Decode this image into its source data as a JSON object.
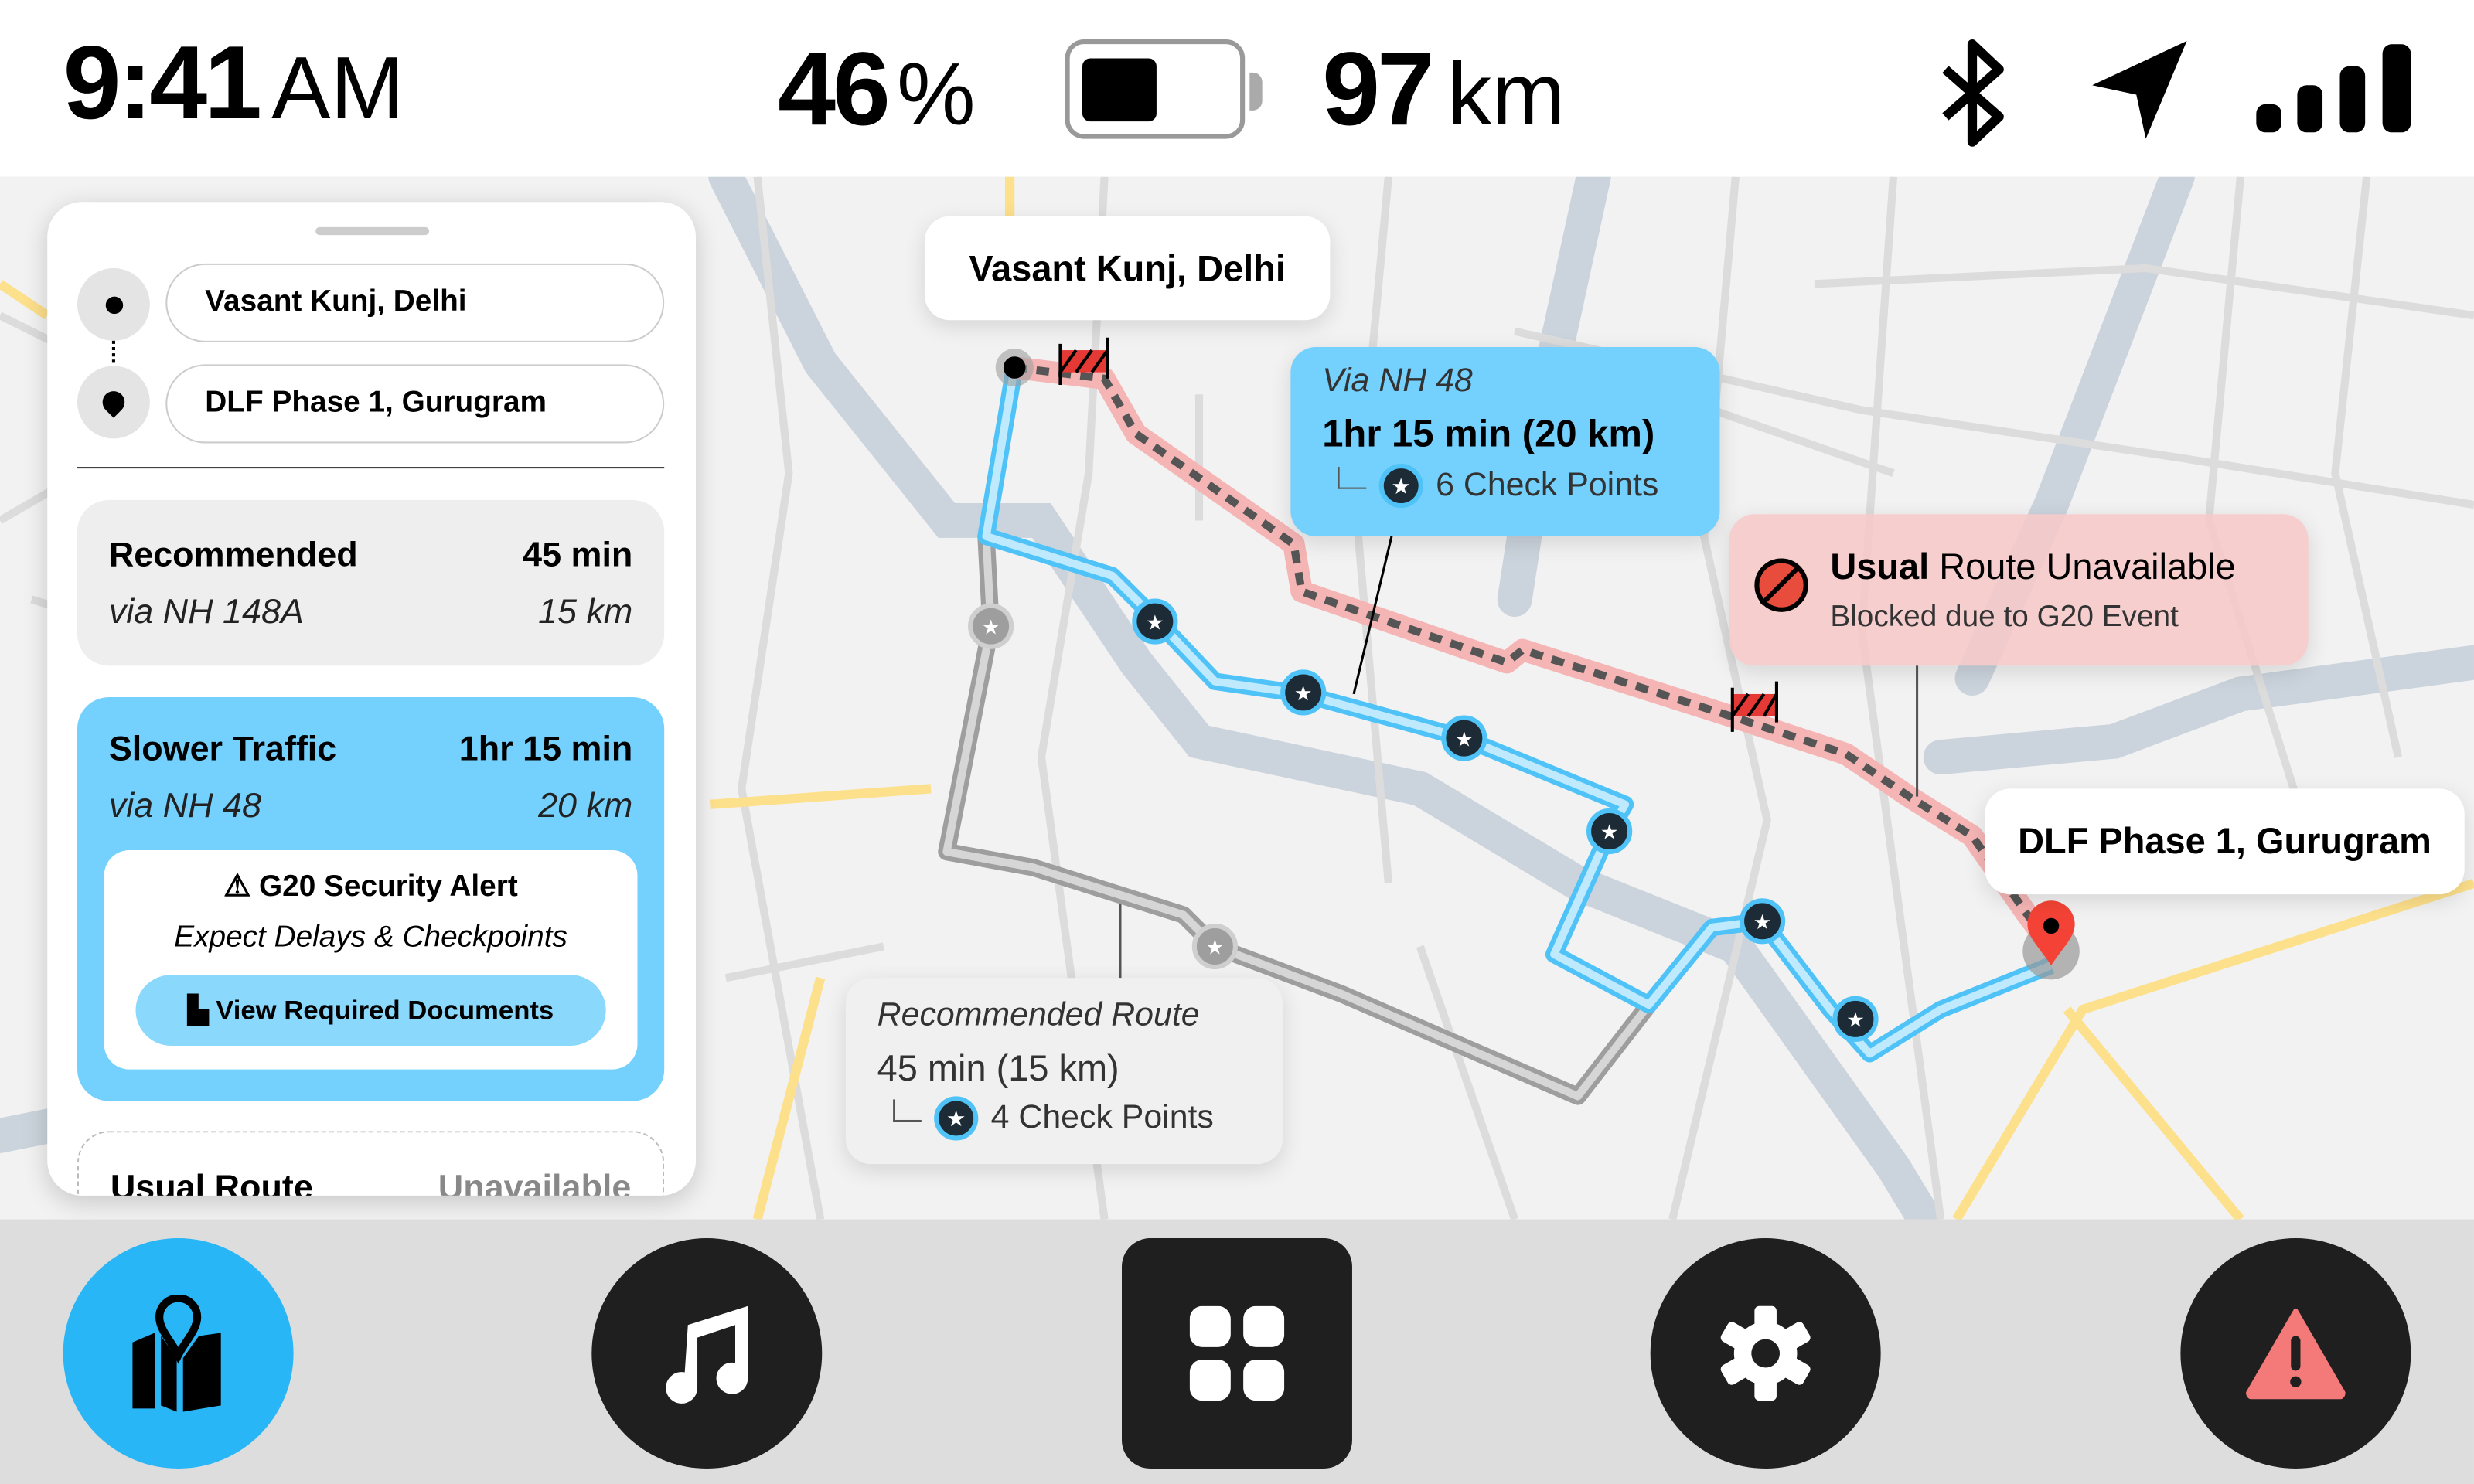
{
  "status": {
    "time": "9:41",
    "ampm": "AM",
    "battery_percent": "46",
    "percent_sign": "%",
    "battery_level": 0.46,
    "range": "97",
    "range_unit": "km",
    "icons": [
      "bluetooth-icon",
      "navigation-arrow-icon",
      "signal-bars-icon"
    ]
  },
  "panel": {
    "origin": "Vasant Kunj, Delhi",
    "destination": "DLF Phase 1, Gurugram",
    "routes": [
      {
        "title": "Recommended",
        "time": "45 min",
        "via": "via NH 148A",
        "distance": "15 km"
      },
      {
        "title": "Slower Traffic",
        "time": "1hr 15 min",
        "via": "via NH 48",
        "distance": "20 km",
        "alert": {
          "title": "G20 Security Alert",
          "subtitle": "Expect Delays & Checkpoints",
          "button": "View Required Documents"
        }
      },
      {
        "title": "Usual Route",
        "time": "Unavailable"
      }
    ]
  },
  "map": {
    "origin_label": "Vasant Kunj, Delhi",
    "destination_label": "DLF Phase 1, Gurugram",
    "nh48": {
      "via": "Via NH 48",
      "summary": "1hr 15 min (20 km)",
      "checkpoints": "6 Check Points"
    },
    "blocked": {
      "title_bold": "Usual",
      "title_rest": " Route Unavailable",
      "subtitle": "Blocked due to G20 Event"
    },
    "recommended": {
      "title": "Recommended Route",
      "summary": "45 min (15 km)",
      "checkpoints": "4 Check Points"
    },
    "colors": {
      "nh48_route": "#4fc3f7",
      "recommended_route": "#bdbdbd",
      "blocked_route": "#ef9a9a",
      "destination_pin": "#f44336"
    }
  },
  "bottom_nav": [
    {
      "name": "map",
      "icon": "map-pin-icon",
      "active": true
    },
    {
      "name": "music",
      "icon": "music-note-icon"
    },
    {
      "name": "apps",
      "icon": "grid-icon"
    },
    {
      "name": "settings",
      "icon": "gear-icon"
    },
    {
      "name": "alert",
      "icon": "warning-icon"
    }
  ],
  "colors": {
    "accent": "#29b6f6",
    "card_blue": "#74d0fc",
    "button_blue": "#8ad8fb",
    "alert_pink": "#f47a7a"
  }
}
